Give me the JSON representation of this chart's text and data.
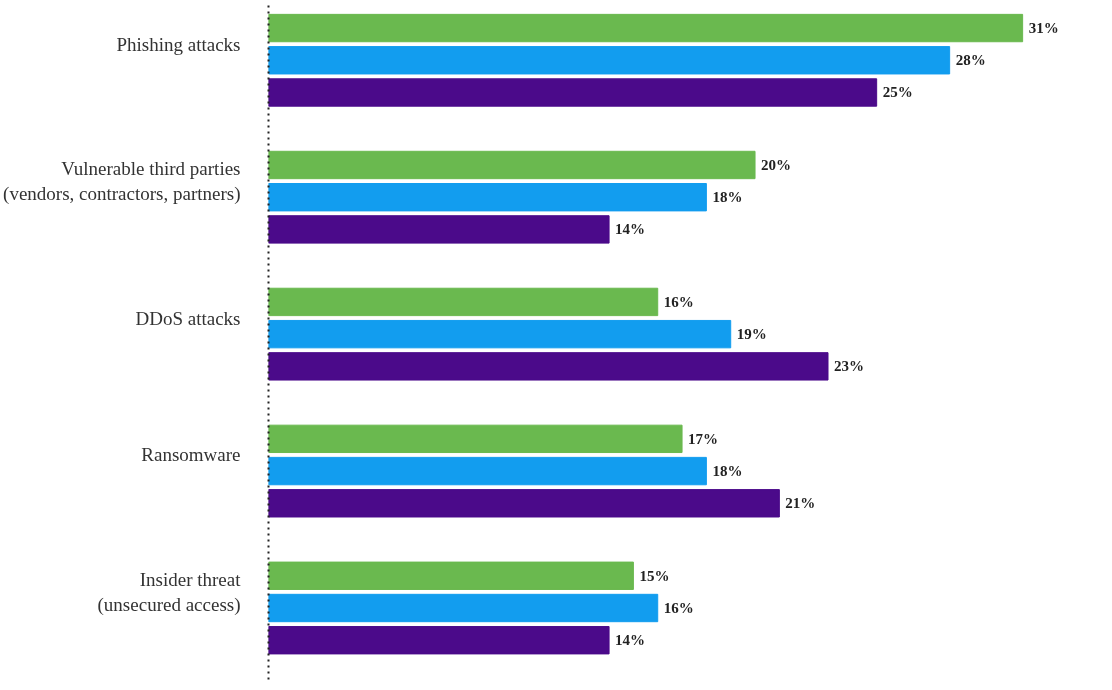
{
  "chart_data": {
    "type": "bar",
    "orientation": "horizontal",
    "categories": [
      "Phishing attacks",
      "Vulnerable third parties (vendors, contractors, partners)",
      "DDoS attacks",
      "Ransomware",
      "Insider threat (unsecured access)"
    ],
    "series": [
      {
        "color": "#6ab94f",
        "values": [
          31,
          20,
          16,
          17,
          15
        ],
        "value_labels": [
          "31%",
          "20%",
          "16%",
          "17%",
          "15%"
        ]
      },
      {
        "color": "#129def",
        "values": [
          28,
          18,
          19,
          18,
          16
        ],
        "value_labels": [
          "28%",
          "18%",
          "19%",
          "18%",
          "16%"
        ]
      },
      {
        "color": "#4b0a8a",
        "values": [
          25,
          14,
          23,
          21,
          14
        ],
        "value_labels": [
          "25%",
          "14%",
          "23%",
          "21%",
          "14%"
        ]
      }
    ],
    "grid": false
  }
}
